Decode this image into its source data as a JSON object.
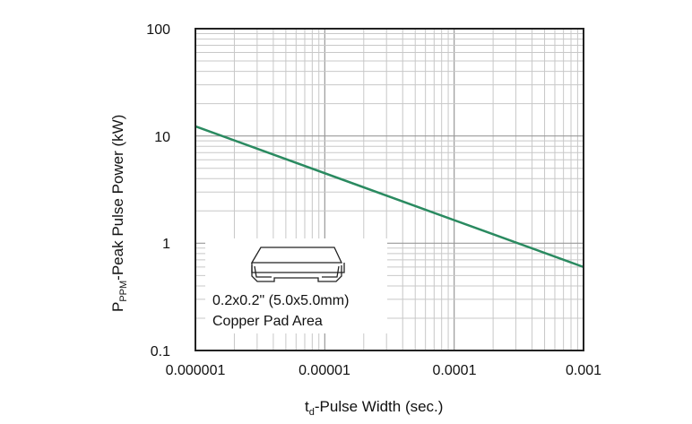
{
  "chart_data": {
    "type": "line",
    "title": "",
    "xlabel": {
      "main": "t",
      "sub": "d",
      "rest": "-Pulse Width (sec.)"
    },
    "ylabel": {
      "main": "P",
      "sub": "PPM",
      "rest": "-Peak Pulse Power (kW)"
    },
    "xscale": "log",
    "yscale": "log",
    "xlim": [
      1e-06,
      0.001
    ],
    "ylim": [
      0.1,
      100
    ],
    "grid": true,
    "x_tick_labels": [
      "0.000001",
      "0.00001",
      "0.0001",
      "0.001"
    ],
    "y_tick_labels": [
      "0.1",
      "1",
      "10",
      "100"
    ],
    "series": [
      {
        "x": [
          1e-06,
          0.001
        ],
        "y": [
          12.3,
          0.6
        ],
        "color": "#2a8a60"
      }
    ],
    "annotation": {
      "line1": "0.2x0.2\" (5.0x5.0mm)",
      "line2": "Copper Pad Area",
      "icon": "smd-package-icon"
    }
  }
}
